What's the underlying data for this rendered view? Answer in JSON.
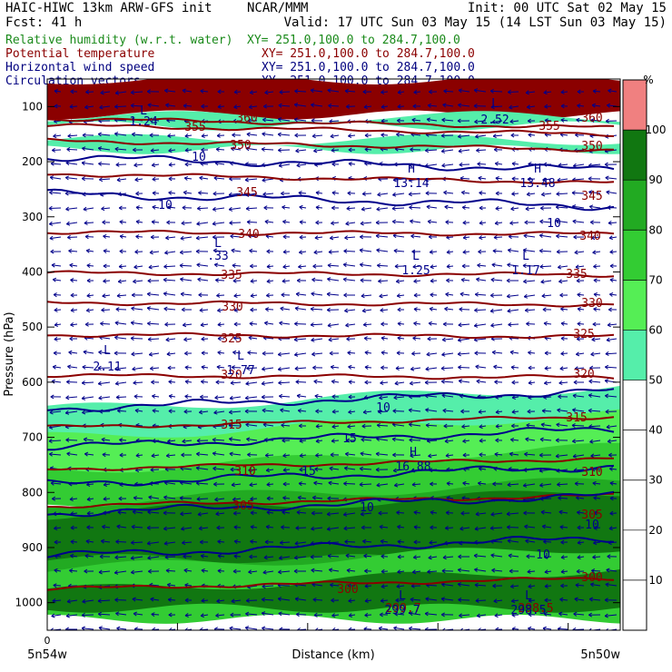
{
  "header": {
    "title_left": "HAIC-HIWC 13km ARW-GFS init",
    "title_center": "NCAR/MMM",
    "init": "Init: 00 UTC Sat 02 May 15",
    "fcst": "Fcst:   41 h",
    "valid": "Valid: 17 UTC Sun 03 May 15 (14 LST Sun 03 May 15)",
    "fields": [
      {
        "label": "Relative humidity (w.r.t. water)",
        "xy": "XY= 251.0,100.0 to 284.7,100.0",
        "color": "#1a8a1a"
      },
      {
        "label": "Potential temperature",
        "xy": "XY= 251.0,100.0 to 284.7,100.0",
        "color": "#8b0000"
      },
      {
        "label": "Horizontal wind speed",
        "xy": "XY= 251.0,100.0 to 284.7,100.0",
        "color": "#00007f"
      },
      {
        "label": "Circulation vectors",
        "xy": "XY= 251.0,100.0 to 284.7,100.0",
        "color": "#00007f"
      }
    ]
  },
  "chart_data": {
    "type": "heatmap",
    "ylabel": "Pressure (hPa)",
    "xlabel": "Distance (km)",
    "x_start_label": "5n54w",
    "x_end_label": "5n50w",
    "x_origin_tick": "0",
    "y_ticks": [
      100,
      200,
      300,
      400,
      500,
      600,
      700,
      800,
      900,
      1000
    ],
    "ylim": [
      1050,
      50
    ],
    "colorbar": {
      "unit": "%",
      "levels": [
        0,
        10,
        20,
        30,
        40,
        50,
        60,
        70,
        80,
        90,
        100,
        110
      ],
      "tick_labels": [
        10,
        20,
        30,
        40,
        50,
        60,
        70,
        80,
        90,
        100
      ],
      "colors": [
        "#ffffff",
        "#ffffff",
        "#ffffff",
        "#ffffff",
        "#ffffff",
        "#55eeaa",
        "#55ee55",
        "#33cc33",
        "#22aa22",
        "#117711",
        "#f08080"
      ]
    },
    "rh_bands": [
      {
        "p_top": 50,
        "p_bot": 115,
        "color": "#8b0000"
      },
      {
        "p_top": 118,
        "p_bot": 135,
        "color": "#55eeaa"
      },
      {
        "p_top": 160,
        "p_bot": 178,
        "color": "#55eeaa"
      },
      {
        "p_top": 650,
        "p_bot": 720,
        "color": "#55eeaa"
      },
      {
        "p_top": 700,
        "p_bot": 790,
        "color": "#55ee55"
      },
      {
        "p_top": 760,
        "p_bot": 830,
        "color": "#33cc33"
      },
      {
        "p_top": 820,
        "p_bot": 960,
        "color": "#22aa22"
      },
      {
        "p_top": 840,
        "p_bot": 920,
        "color": "#117711"
      },
      {
        "p_top": 940,
        "p_bot": 1030,
        "color": "#33cc33"
      },
      {
        "p_top": 980,
        "p_bot": 1010,
        "color": "#117711"
      }
    ],
    "theta_contours": [
      {
        "value": 360,
        "p": 122
      },
      {
        "value": 355,
        "p": 134
      },
      {
        "value": 350,
        "p": 162
      },
      {
        "value": 345,
        "p": 222
      },
      {
        "value": 340,
        "p": 328
      },
      {
        "value": 335,
        "p": 402
      },
      {
        "value": 330,
        "p": 456
      },
      {
        "value": 325,
        "p": 514
      },
      {
        "value": 320,
        "p": 588
      },
      {
        "value": 315,
        "p": 682
      },
      {
        "value": 310,
        "p": 758
      },
      {
        "value": 305,
        "p": 825
      },
      {
        "value": 300,
        "p": 975
      }
    ],
    "theta_labels": [
      "360",
      "355",
      "350",
      "345",
      "340",
      "335",
      "330",
      "325",
      "320",
      "315",
      "310",
      "305",
      "300",
      "299.7",
      "298.5"
    ],
    "wind_contours": [
      {
        "value": 10,
        "p": 192
      },
      {
        "value": 10,
        "p": 258
      },
      {
        "value": 10,
        "p": 648
      },
      {
        "value": 15,
        "p": 718
      },
      {
        "value": 15,
        "p": 785
      },
      {
        "value": 10,
        "p": 838
      },
      {
        "value": 10,
        "p": 915
      }
    ],
    "wind_labels": [
      "10",
      "10",
      "10",
      "10",
      "15",
      "15",
      "10",
      "10",
      "10"
    ],
    "extrema": [
      {
        "type": "L",
        "value": "1.24"
      },
      {
        "type": "L",
        "value": "2.52"
      },
      {
        "type": "H",
        "value": "13.14"
      },
      {
        "type": "H",
        "value": "13.48"
      },
      {
        "type": "L",
        "value": ".33"
      },
      {
        "type": "L",
        "value": "1.25"
      },
      {
        "type": "L",
        "value": "1.17"
      },
      {
        "type": "L",
        "value": "2.11"
      },
      {
        "type": "L",
        "value": "1.77"
      },
      {
        "type": "H",
        "value": "16.88"
      },
      {
        "type": "L",
        "value": "299.7"
      },
      {
        "type": "L",
        "value": "298.5"
      }
    ]
  }
}
